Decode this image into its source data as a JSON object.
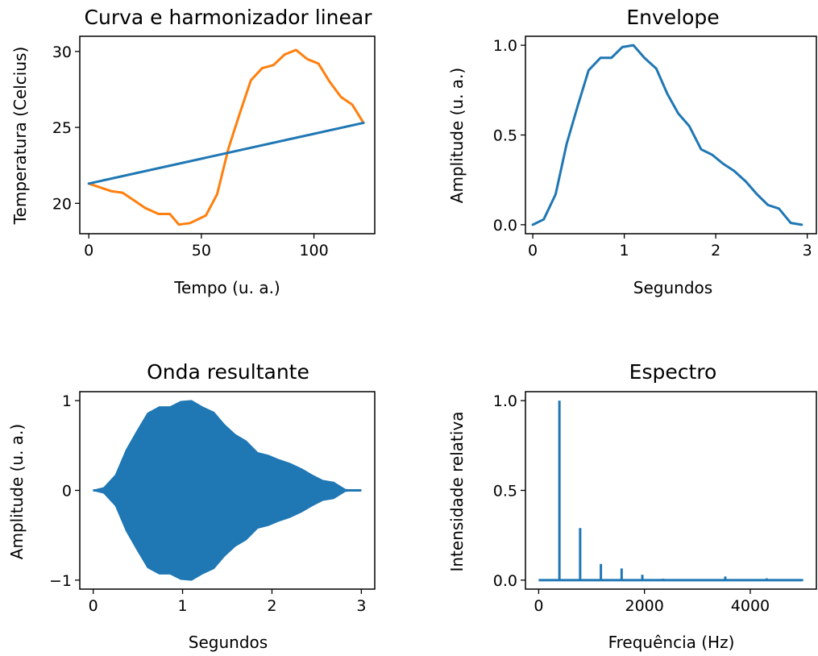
{
  "chart_data": [
    {
      "id": "p1",
      "type": "line",
      "title": "Curva e harmonizador linear",
      "xlabel": "Tempo (u. a.)",
      "ylabel": "Temperatura (Celcius)",
      "xlim": [
        -4,
        127
      ],
      "ylim": [
        18.0,
        31.0
      ],
      "xticks": [
        0,
        50,
        100
      ],
      "xticklabels": [
        "0",
        "50",
        "100"
      ],
      "yticks": [
        20,
        25,
        30
      ],
      "yticklabels": [
        "20",
        "25",
        "30"
      ],
      "series": [
        {
          "color": "#ff7f0e",
          "x": [
            0,
            4,
            10,
            15,
            20,
            25,
            31,
            36,
            40,
            45,
            52,
            57,
            62,
            67,
            72,
            77,
            82,
            87,
            92,
            97,
            102,
            107,
            112,
            117,
            122
          ],
          "y": [
            21.3,
            21.1,
            20.8,
            20.7,
            20.2,
            19.7,
            19.3,
            19.3,
            18.6,
            18.7,
            19.2,
            20.6,
            23.6,
            25.9,
            28.1,
            28.9,
            29.1,
            29.8,
            30.1,
            29.5,
            29.2,
            28.0,
            27.0,
            26.5,
            25.3
          ]
        },
        {
          "color": "#1f77b4",
          "x": [
            0,
            122
          ],
          "y": [
            21.3,
            25.3
          ]
        }
      ]
    },
    {
      "id": "p2",
      "type": "line",
      "title": "Envelope",
      "xlabel": "Segundos",
      "ylabel": "Amplitude (u. a.)",
      "xlim": [
        -0.08,
        3.1
      ],
      "ylim": [
        -0.05,
        1.05
      ],
      "xticks": [
        0,
        1,
        2,
        3
      ],
      "xticklabels": [
        "0",
        "1",
        "2",
        "3"
      ],
      "yticks": [
        0.0,
        0.5,
        1.0
      ],
      "yticklabels": [
        "0.0",
        "0.5",
        "1.0"
      ],
      "series": [
        {
          "color": "#1f77b4",
          "x": [
            0,
            0.12,
            0.25,
            0.37,
            0.49,
            0.61,
            0.74,
            0.86,
            0.98,
            1.1,
            1.22,
            1.35,
            1.47,
            1.59,
            1.71,
            1.84,
            1.96,
            2.08,
            2.2,
            2.33,
            2.45,
            2.57,
            2.69,
            2.82,
            2.94
          ],
          "y": [
            0.0,
            0.03,
            0.17,
            0.45,
            0.66,
            0.86,
            0.93,
            0.93,
            0.99,
            1.0,
            0.93,
            0.87,
            0.73,
            0.62,
            0.55,
            0.42,
            0.39,
            0.34,
            0.3,
            0.24,
            0.17,
            0.11,
            0.09,
            0.01,
            0.0
          ]
        }
      ]
    },
    {
      "id": "p3",
      "type": "area",
      "title": "Onda resultante",
      "xlabel": "Segundos",
      "ylabel": "Amplitude (u. a.)",
      "xlim": [
        -0.15,
        3.15
      ],
      "ylim": [
        -1.1,
        1.1
      ],
      "xticks": [
        0,
        1,
        2,
        3
      ],
      "xticklabels": [
        "0",
        "1",
        "2",
        "3"
      ],
      "yticks": [
        -1,
        0,
        1
      ],
      "yticklabels": [
        "−1",
        "0",
        "1"
      ],
      "series": [
        {
          "color": "#1f77b4",
          "x": [
            0,
            0.12,
            0.25,
            0.37,
            0.49,
            0.61,
            0.74,
            0.86,
            0.98,
            1.1,
            1.22,
            1.35,
            1.47,
            1.59,
            1.71,
            1.84,
            1.96,
            2.08,
            2.2,
            2.33,
            2.45,
            2.57,
            2.69,
            2.82,
            2.94,
            3.0
          ],
          "envelope": [
            0.0,
            0.03,
            0.17,
            0.45,
            0.66,
            0.86,
            0.93,
            0.93,
            0.99,
            1.0,
            0.93,
            0.87,
            0.73,
            0.62,
            0.55,
            0.42,
            0.39,
            0.34,
            0.3,
            0.24,
            0.17,
            0.11,
            0.09,
            0.01,
            0.0,
            0.0
          ]
        }
      ]
    },
    {
      "id": "p4",
      "type": "line",
      "title": "Espectro",
      "xlabel": "Frequência (Hz)",
      "ylabel": "Intensidade relativa",
      "xlim": [
        -250,
        5250
      ],
      "ylim": [
        -0.05,
        1.05
      ],
      "xticks": [
        0,
        2000,
        4000
      ],
      "xticklabels": [
        "0",
        "2000",
        "4000"
      ],
      "yticks": [
        0.0,
        0.5,
        1.0
      ],
      "yticklabels": [
        "0.0",
        "0.5",
        "1.0"
      ],
      "series": [
        {
          "color": "#1f77b4",
          "baseline": 0,
          "xmax": 5000,
          "peaks": [
            {
              "x": 392,
              "y": 1.0
            },
            {
              "x": 784,
              "y": 0.29
            },
            {
              "x": 1176,
              "y": 0.09
            },
            {
              "x": 1568,
              "y": 0.065
            },
            {
              "x": 1960,
              "y": 0.03
            },
            {
              "x": 2352,
              "y": 0.008
            },
            {
              "x": 2744,
              "y": 0.006
            },
            {
              "x": 3136,
              "y": 0.006
            },
            {
              "x": 3528,
              "y": 0.02
            },
            {
              "x": 3920,
              "y": 0.005
            },
            {
              "x": 4312,
              "y": 0.01
            }
          ]
        }
      ]
    }
  ]
}
